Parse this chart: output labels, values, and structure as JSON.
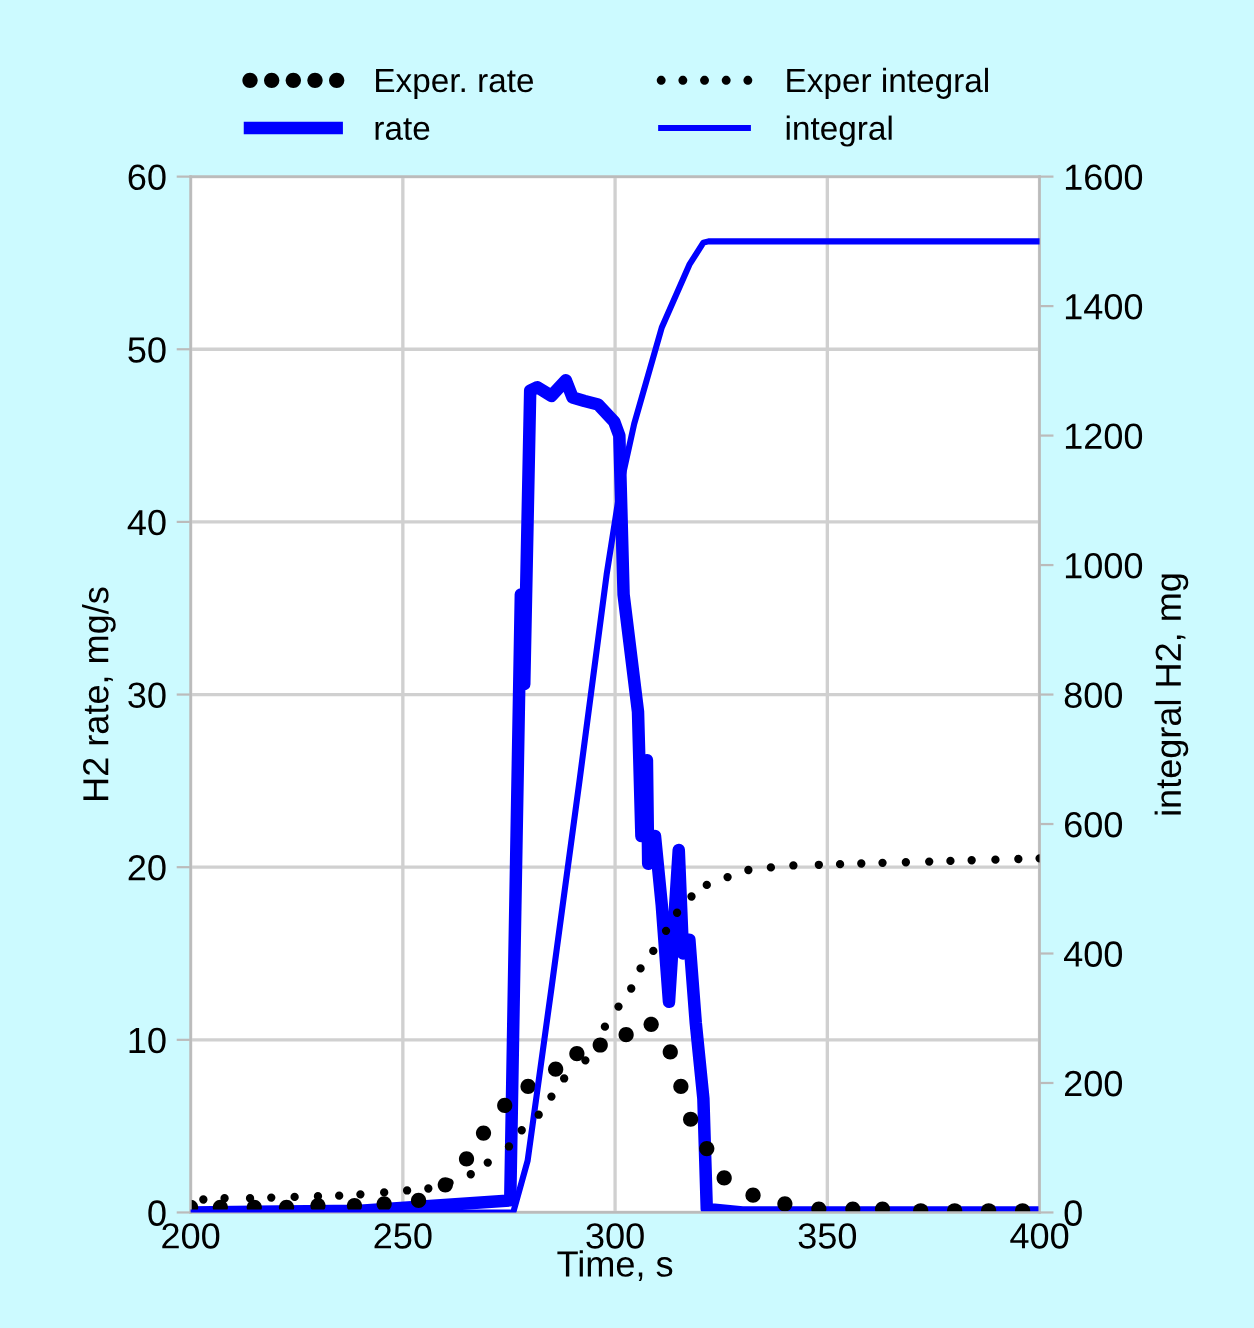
{
  "chart_data": {
    "type": "line",
    "xlabel": "Time, s",
    "ylabel": "H2 rate, mg/s",
    "y2label": "integral H2, mg",
    "xlim": [
      200,
      400
    ],
    "xticks": [
      200,
      250,
      300,
      350,
      400
    ],
    "ylim": [
      0,
      60
    ],
    "yticks": [
      0,
      10,
      20,
      30,
      40,
      50,
      60
    ],
    "y2lim": [
      0,
      1600
    ],
    "y2ticks": [
      0,
      200,
      400,
      600,
      800,
      1000,
      1200,
      1400,
      1600
    ],
    "grid": true,
    "legend": "top",
    "series": [
      {
        "name": "Exper. rate",
        "type": "scatter",
        "marker": "circle",
        "color": "#000000",
        "x": [
          200,
          207,
          215,
          222.6,
          230,
          238.6,
          245.6,
          253.7,
          260,
          265,
          269,
          274,
          279.5,
          286,
          291,
          296.5,
          302.6,
          308.5,
          313,
          315.5,
          317.8,
          321.6,
          325.7,
          332.5,
          340,
          348,
          356,
          363,
          372,
          380,
          388,
          396
        ],
        "values": [
          0.3,
          0.3,
          0.3,
          0.3,
          0.4,
          0.4,
          0.5,
          0.7,
          1.6,
          3.1,
          4.6,
          6.2,
          7.3,
          8.3,
          9.2,
          9.7,
          10.3,
          10.9,
          9.3,
          7.3,
          5.4,
          3.7,
          2.0,
          1.0,
          0.5,
          0.2,
          0.2,
          0.2,
          0.1,
          0.1,
          0.1,
          0.1
        ]
      },
      {
        "name": "rate",
        "color": "#0000ff",
        "x": [
          200,
          240,
          275.3,
          276.3,
          277.8,
          278.6,
          280,
          281.7,
          285,
          288.4,
          290,
          292.8,
          296,
          299.8,
          301,
          302,
          305.4,
          306.2,
          307.5,
          307.8,
          309.4,
          311,
          312.7,
          315,
          316,
          317.5,
          319,
          320.8,
          321.6,
          330,
          400
        ],
        "values": [
          0,
          0.1,
          0.7,
          15,
          35.8,
          30.6,
          47.6,
          47.8,
          47.3,
          48.2,
          47.2,
          47.0,
          46.8,
          45.8,
          45,
          35.8,
          29,
          21.8,
          26.2,
          20.2,
          21.8,
          17.8,
          12.2,
          21,
          15,
          15.8,
          11,
          6.6,
          0.2,
          0,
          0
        ]
      },
      {
        "name": "Exper integral",
        "type": "scatter",
        "marker": "circle",
        "axis": "y2",
        "color": "#000000",
        "x": [
          203,
          208,
          214,
          219,
          224.5,
          230,
          235,
          240,
          245.6,
          251,
          256,
          261,
          266,
          270,
          275,
          278,
          282,
          285,
          288,
          293,
          297.6,
          300.8,
          303.8,
          306,
          309,
          312,
          314.6,
          318,
          321.6,
          326.5,
          331.4,
          336.7,
          342,
          348,
          353,
          358,
          363,
          368.5,
          374,
          379,
          384,
          389.6,
          395,
          400
        ],
        "values": [
          20,
          22,
          22,
          23,
          24,
          25,
          26,
          28,
          31,
          34,
          37,
          46,
          59,
          77,
          102,
          127,
          151,
          179,
          207,
          235,
          287,
          318,
          346,
          377,
          404,
          435,
          463,
          488,
          506,
          518,
          529,
          533,
          536,
          537,
          538,
          539,
          540,
          541,
          542,
          543,
          544,
          545,
          546,
          547
        ]
      },
      {
        "name": "integral",
        "axis": "y2",
        "color": "#0000ff",
        "x": [
          200,
          276,
          279.4,
          285,
          291.6,
          298,
          301.3,
          304.5,
          311,
          317.5,
          320.8,
          322,
          400
        ],
        "values": [
          0,
          0,
          80,
          346,
          666,
          985,
          1123,
          1218,
          1367,
          1464,
          1498,
          1500,
          1500
        ]
      }
    ]
  }
}
